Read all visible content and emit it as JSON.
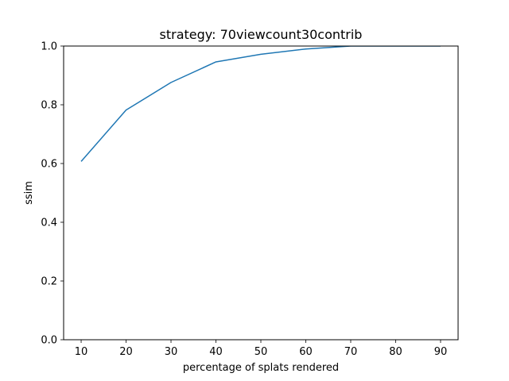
{
  "chart_data": {
    "type": "line",
    "title": "strategy: 70viewcount30contrib",
    "xlabel": "percentage of splats rendered",
    "ylabel": "ssim",
    "xlim": [
      6.1,
      93.9
    ],
    "ylim": [
      0.0,
      1.0
    ],
    "xticks": [
      "10",
      "20",
      "30",
      "40",
      "50",
      "60",
      "70",
      "80",
      "90"
    ],
    "yticks": [
      "0.0",
      "0.2",
      "0.4",
      "0.6",
      "0.8",
      "1.0"
    ],
    "grid": false,
    "series": [
      {
        "color": "#1f77b4",
        "x": [
          10,
          20,
          30,
          40,
          50,
          60,
          70,
          80,
          90
        ],
        "y": [
          0.607,
          0.782,
          0.876,
          0.946,
          0.972,
          0.99,
          1.0,
          1.0,
          1.0
        ]
      }
    ]
  }
}
